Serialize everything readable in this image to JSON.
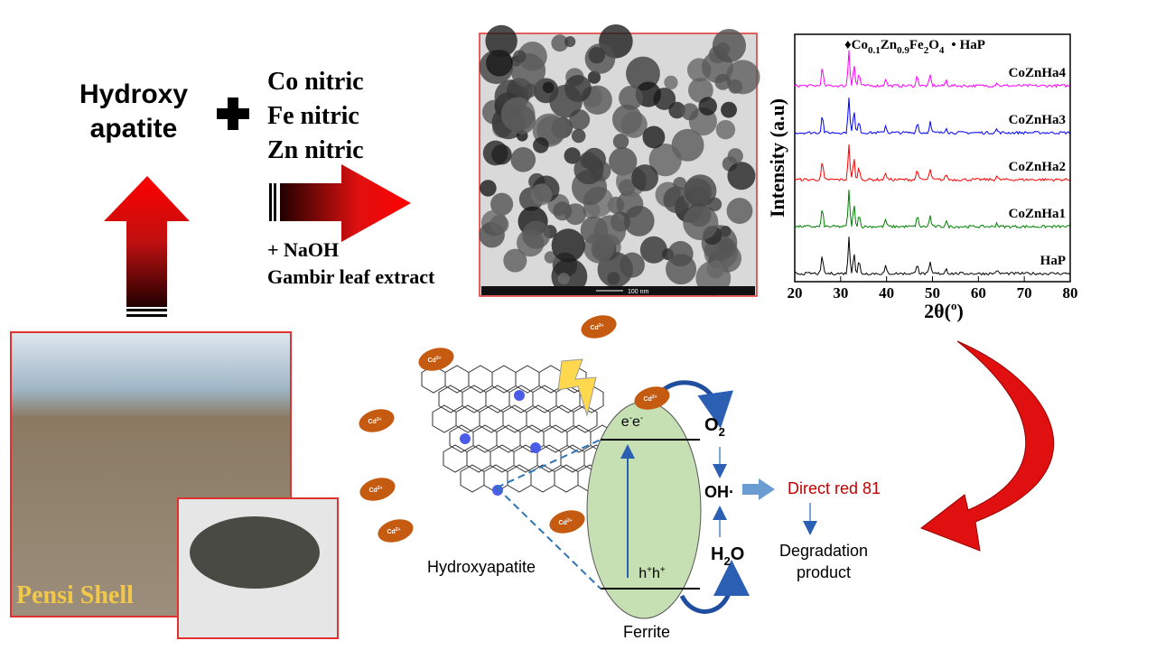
{
  "reactants": {
    "base": [
      "Hydroxy",
      "apatite"
    ],
    "salts": [
      "Co nitric",
      "Fe nitric",
      "Zn nitric"
    ],
    "additives": [
      "+ NaOH",
      "Gambir leaf extract"
    ]
  },
  "source": {
    "label": "Pensi Shell"
  },
  "tem": {
    "scale_bar": "100 nm"
  },
  "xrd": {
    "legend_formula": [
      "Co",
      "0.1",
      "Zn",
      "0.9",
      "Fe",
      "2",
      "O",
      "4"
    ],
    "legend_markers": [
      "♦",
      "•"
    ],
    "legend_hap": "HaP",
    "curves": [
      "CoZnHa4",
      "CoZnHa3",
      "CoZnHa2",
      "CoZnHa1",
      "HaP"
    ],
    "curve_colors": [
      "#ff00ff",
      "#0000ff",
      "#ff0000",
      "#008000",
      "#000000"
    ],
    "y_label": "Intensity (a.u)",
    "x_label": [
      "2θ(",
      "o",
      ")"
    ],
    "xticks": [
      "20",
      "30",
      "40",
      "50",
      "60",
      "70",
      "80"
    ]
  },
  "mechanism": {
    "cd_ion": [
      "Cd",
      "2+"
    ],
    "electrons": [
      "e",
      "-",
      "e",
      "-"
    ],
    "holes": [
      "h",
      "+",
      "h",
      "+"
    ],
    "oxygen": [
      "O",
      "2"
    ],
    "radical": "OH·",
    "water": [
      "H",
      "2",
      "O"
    ],
    "dye": "Direct red 81",
    "product": [
      "Degradation",
      "product"
    ],
    "support": "Hydroxyapatite",
    "catalyst": "Ferrite"
  }
}
